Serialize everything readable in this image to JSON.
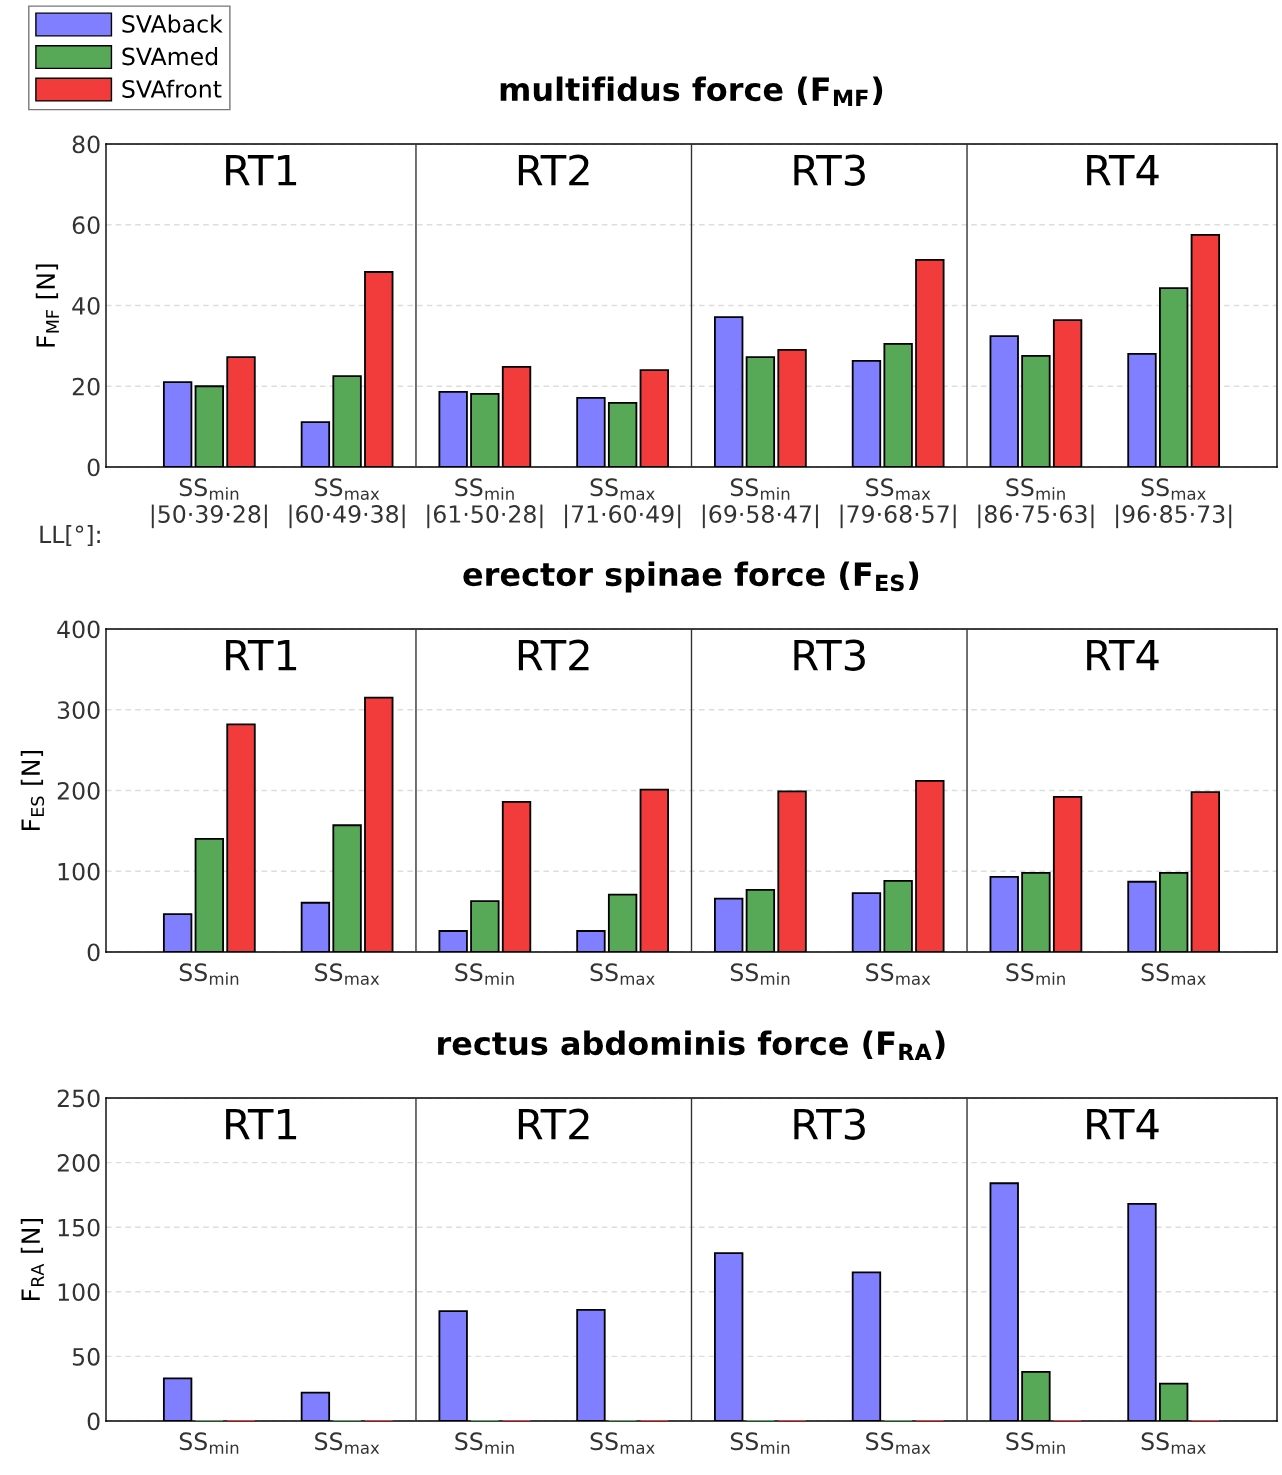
{
  "chart_data": [
    {
      "type": "bar",
      "title": "multifidus force (F$_{MF}$)",
      "ylabel": "F$_{MF}$ [N]",
      "categories": [
        "SS$_{min}$\n|50·39·28|",
        "SS$_{max}$\n|60·49·38|",
        "SS$_{min}$\n|61·50·28|",
        "SS$_{max}$\n|71·60·49|",
        "SS$_{min}$\n|69·58·47|",
        "SS$_{max}$\n|79·68·57|",
        "SS$_{min}$\n|86·75·63|",
        "SS$_{max}$\n|96·85·73|"
      ],
      "annotations": [
        "RT1",
        "RT2",
        "RT3",
        "RT4",
        "LL[°]:"
      ],
      "legend": "top left",
      "grid": "y",
      "ylim": [
        0,
        80
      ],
      "yticks": [
        0,
        20,
        40,
        60,
        80
      ],
      "series": [
        {
          "name": "SVAback",
          "color": "#7f7fff",
          "values": [
            21,
            11.1,
            18.6,
            17.1,
            37.1,
            26.3,
            32.4,
            28
          ]
        },
        {
          "name": "SVAmed",
          "color": "#57a957",
          "values": [
            20,
            22.5,
            18.1,
            15.9,
            27.2,
            30.5,
            27.5,
            44.3
          ]
        },
        {
          "name": "SVAfront",
          "color": "#f23c3c",
          "values": [
            27.2,
            48.3,
            24.8,
            24,
            29,
            51.3,
            36.4,
            57.5
          ]
        }
      ]
    },
    {
      "type": "bar",
      "title": "erector spinae force (F$_{ES}$)",
      "ylabel": "F$_{ES}$ [N]",
      "categories": [
        "SS$_{min}$",
        "SS$_{max}$",
        "SS$_{min}$",
        "SS$_{max}$",
        "SS$_{min}$",
        "SS$_{max}$",
        "SS$_{min}$",
        "SS$_{max}$"
      ],
      "annotations": [
        "RT1",
        "RT2",
        "RT3",
        "RT4"
      ],
      "grid": "y",
      "ylim": [
        0,
        400
      ],
      "yticks": [
        0,
        100,
        200,
        300,
        400
      ],
      "series": [
        {
          "color": "#7f7fff",
          "values": [
            47,
            61,
            26,
            26,
            66,
            73,
            93,
            87
          ]
        },
        {
          "color": "#57a957",
          "values": [
            140,
            157,
            63,
            71,
            77,
            88,
            98,
            98
          ]
        },
        {
          "color": "#f23c3c",
          "values": [
            282,
            315,
            186,
            201,
            199,
            212,
            192,
            198
          ]
        }
      ]
    },
    {
      "type": "bar",
      "title": "rectus abdominis force (F$_{RA}$)",
      "ylabel": "F$_{RA}$ [N]",
      "categories": [
        "SS$_{min}$",
        "SS$_{max}$",
        "SS$_{min}$",
        "SS$_{max}$",
        "SS$_{min}$",
        "SS$_{max}$",
        "SS$_{min}$",
        "SS$_{max}$"
      ],
      "annotations": [
        "RT1",
        "RT2",
        "RT3",
        "RT4"
      ],
      "grid": "y",
      "ylim": [
        0,
        250
      ],
      "yticks": [
        0,
        50,
        100,
        150,
        200,
        250
      ],
      "series": [
        {
          "color": "#7f7fff",
          "values": [
            33,
            22,
            85,
            86,
            130,
            115,
            184,
            168
          ]
        },
        {
          "color": "#57a957",
          "values": [
            0,
            0,
            0,
            0,
            0,
            0,
            38,
            29
          ]
        },
        {
          "color": "#f23c3c",
          "values": [
            0,
            0,
            0,
            0,
            0,
            0,
            0,
            0
          ]
        }
      ]
    }
  ]
}
